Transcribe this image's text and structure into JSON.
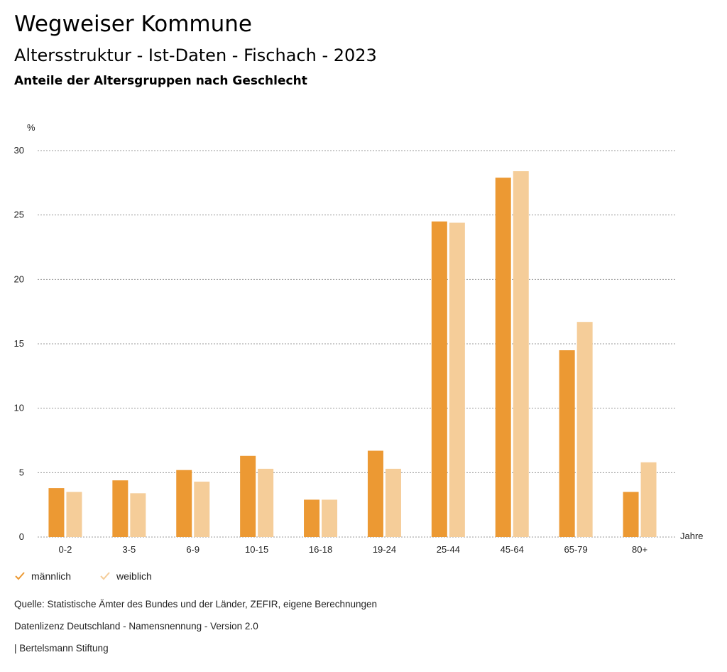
{
  "header": {
    "title": "Wegweiser Kommune",
    "subtitle": "Altersstruktur - Ist-Daten - Fischach - 2023",
    "subsubtitle": "Anteile der Altersgruppen nach Geschlecht"
  },
  "chart_data": {
    "type": "bar",
    "title": "Anteile der Altersgruppen nach Geschlecht",
    "ylabel": "%",
    "xlabel": "Jahre",
    "ylim": [
      0,
      30
    ],
    "yticks": [
      0,
      5,
      10,
      15,
      20,
      25,
      30
    ],
    "grid": true,
    "categories": [
      "0-2",
      "3-5",
      "6-9",
      "10-15",
      "16-18",
      "19-24",
      "25-44",
      "45-64",
      "65-79",
      "80+"
    ],
    "series": [
      {
        "name": "männlich",
        "color": "#ec9933",
        "values": [
          3.8,
          4.4,
          5.2,
          6.3,
          2.9,
          6.7,
          24.5,
          27.9,
          14.5,
          3.5
        ]
      },
      {
        "name": "weiblich",
        "color": "#f5cd99",
        "values": [
          3.5,
          3.4,
          4.3,
          5.3,
          2.9,
          5.3,
          24.4,
          28.4,
          16.7,
          5.8
        ]
      }
    ],
    "legend_position": "bottom-left"
  },
  "legend": {
    "items": [
      {
        "label": "männlich",
        "color": "#ec9933"
      },
      {
        "label": "weiblich",
        "color": "#f5cd99"
      }
    ]
  },
  "footer": {
    "source": "Quelle: Statistische Ämter des Bundes und der Länder, ZEFIR, eigene Berechnungen",
    "license": "Datenlizenz Deutschland - Namensnennung - Version 2.0",
    "credit": "| Bertelsmann Stiftung"
  }
}
